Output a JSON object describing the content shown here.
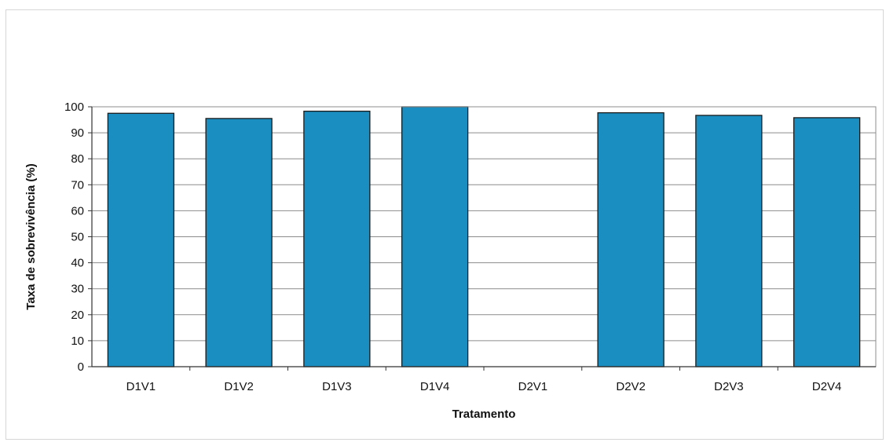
{
  "chart_data": {
    "type": "bar",
    "title": "",
    "xlabel": "Tratamento",
    "ylabel": "Taxa de sobrevivência (%)",
    "categories": [
      "D1V1",
      "D1V2",
      "D1V3",
      "D1V4",
      "D2V1",
      "D2V2",
      "D2V3",
      "D2V4"
    ],
    "values": [
      97.5,
      95.5,
      98.3,
      100,
      0,
      97.7,
      96.7,
      95.8
    ],
    "ylim": [
      0,
      100
    ],
    "yticks": [
      0,
      10,
      20,
      30,
      40,
      50,
      60,
      70,
      80,
      90,
      100
    ],
    "grid": true,
    "legend": "none",
    "bar_color": "#1a8ec1"
  }
}
